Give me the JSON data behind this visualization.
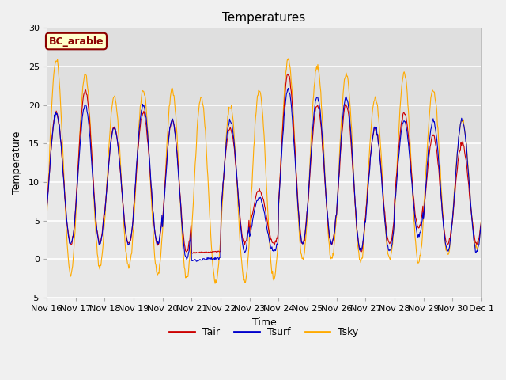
{
  "title": "Temperatures",
  "xlabel": "Time",
  "ylabel": "Temperature",
  "ylim": [
    -5,
    30
  ],
  "yticks": [
    -5,
    0,
    5,
    10,
    15,
    20,
    25,
    30
  ],
  "x_tick_labels": [
    "Nov 16",
    "Nov 17",
    "Nov 18",
    "Nov 19",
    "Nov 20",
    "Nov 21",
    "Nov 22",
    "Nov 23",
    "Nov 24",
    "Nov 25",
    "Nov 26",
    "Nov 27",
    "Nov 28",
    "Nov 29",
    "Nov 30",
    "Dec 1"
  ],
  "line_colors": {
    "Tair": "#cc0000",
    "Tsurf": "#0000cc",
    "Tsky": "#ffaa00"
  },
  "line_widths": {
    "Tair": 0.8,
    "Tsurf": 0.8,
    "Tsky": 0.8
  },
  "legend_label": "BC_arable",
  "legend_box_facecolor": "#ffffcc",
  "legend_box_edgecolor": "#8b0000",
  "legend_text_color": "#8b0000",
  "fig_bg": "#f0f0f0",
  "plot_bg": "#e8e8e8",
  "upper_band_color": "#d8d8d8",
  "grid_color": "white",
  "title_fontsize": 11,
  "axis_fontsize": 9,
  "tick_fontsize": 8
}
